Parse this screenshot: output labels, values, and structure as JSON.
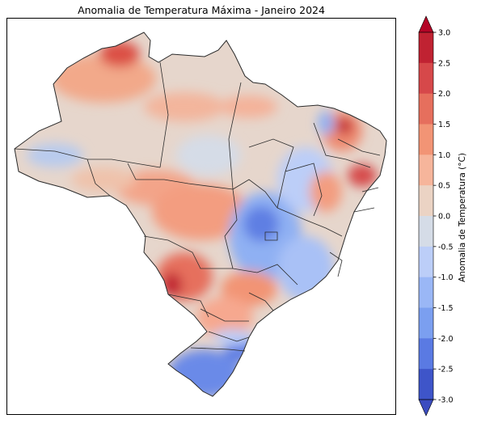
{
  "title": "Anomalia de Temperatura Máxima - Janeiro 2024",
  "colorbar": {
    "label": "Anomalia de Temperatura (°C)",
    "ticks": [
      "3.0",
      "2.5",
      "2.0",
      "1.5",
      "1.0",
      "0.5",
      "0.0",
      "-0.5",
      "-1.0",
      "-1.5",
      "-2.0",
      "-2.5",
      "-3.0"
    ],
    "colors": [
      "#c02232",
      "#d6484a",
      "#e66f5d",
      "#f29475",
      "#f6b59b",
      "#ebd3c4",
      "#d5dce7",
      "#bccef8",
      "#9ab7f6",
      "#7b9ff0",
      "#5a7ae3",
      "#3e55c9"
    ],
    "extend_max_color": "#b40426",
    "extend_min_color": "#3b4cc0"
  }
}
